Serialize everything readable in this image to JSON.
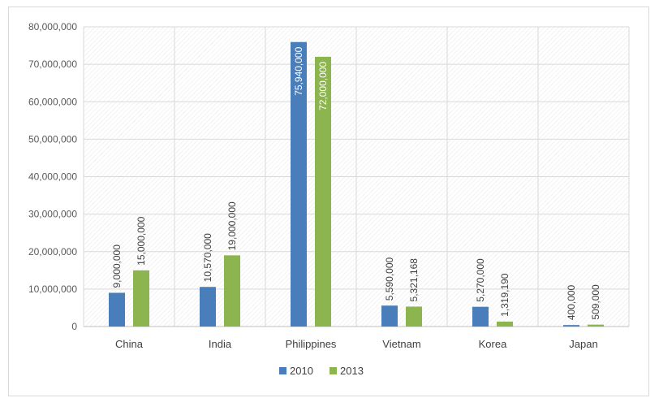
{
  "chart_data": {
    "type": "bar",
    "title": "",
    "xlabel": "",
    "ylabel": "",
    "categories": [
      "China",
      "India",
      "Philippines",
      "Vietnam",
      "Korea",
      "Japan"
    ],
    "series": [
      {
        "name": "2010",
        "color": "#4a7ebb",
        "values": [
          9000000,
          10570000,
          75940000,
          5590000,
          5270000,
          400000
        ],
        "labels": [
          "9,000,000",
          "10,570,000",
          "75,940,000",
          "5,590,000",
          "5,270,000",
          "400,000"
        ]
      },
      {
        "name": "2013",
        "color": "#8cb44f",
        "values": [
          15000000,
          19000000,
          72000000,
          5321168,
          1319190,
          509000
        ],
        "labels": [
          "15,000,000",
          "19,000,000",
          "72,000,000",
          "5,321,168",
          "1,319,190",
          "509,000"
        ]
      }
    ],
    "ylim": [
      0,
      80000000
    ],
    "yticks": [
      0,
      10000000,
      20000000,
      30000000,
      40000000,
      50000000,
      60000000,
      70000000,
      80000000
    ],
    "ytick_labels": [
      "0",
      "10,000,000",
      "20,000,000",
      "30,000,000",
      "40,000,000",
      "50,000,000",
      "60,000,000",
      "70,000,000",
      "80,000,000"
    ],
    "grid": true,
    "legend_position": "bottom-center",
    "inside_label_categories": [
      "Philippines"
    ]
  }
}
